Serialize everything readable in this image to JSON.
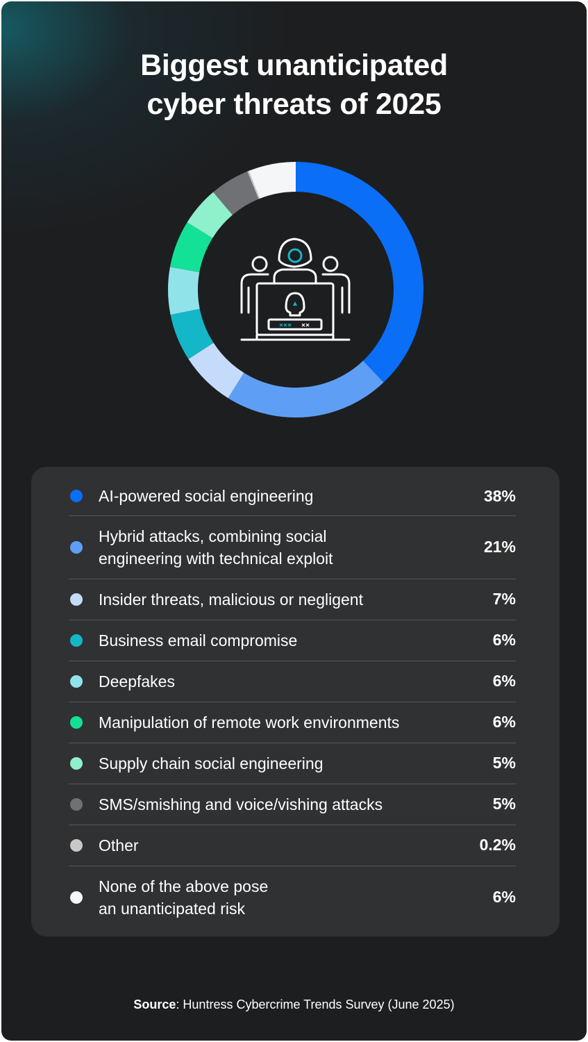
{
  "title_line1": "Biggest unanticipated",
  "title_line2": "cyber threats of 2025",
  "chart_data": {
    "type": "pie",
    "donut": true,
    "title": "Biggest unanticipated cyber threats of 2025",
    "categories": [
      "AI-powered social engineering",
      "Hybrid attacks, combining social\nengineering with technical exploit",
      "Insider threats, malicious or negligent",
      "Business email compromise",
      "Deepfakes",
      "Manipulation of remote work environments",
      "Supply chain social engineering",
      "SMS/smishing and voice/vishing attacks",
      "Other",
      "None of the above pose\nan unanticipated risk"
    ],
    "values": [
      38,
      21,
      7,
      6,
      6,
      6,
      5,
      5,
      0.2,
      6
    ],
    "value_labels": [
      "38%",
      "21%",
      "7%",
      "6%",
      "6%",
      "6%",
      "5%",
      "5%",
      "0.2%",
      "6%"
    ],
    "colors": [
      "#0a6ef6",
      "#5e9ff5",
      "#c5dbfb",
      "#14b7c7",
      "#91e3ea",
      "#13e196",
      "#8ff0cc",
      "#707174",
      "#c8c8c8",
      "#f4f6f8"
    ],
    "legend_position": "bottom"
  },
  "center_icon": "hacker-at-computer-icon",
  "source_label": "Source",
  "source_text": ": Huntress Cybercrime Trends Survey (June 2025)"
}
